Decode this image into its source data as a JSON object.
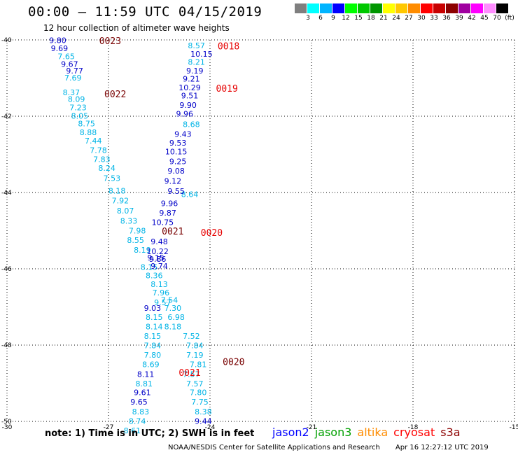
{
  "title": "00:00 – 11:59 UTC 04/15/2019",
  "subtitle": "12 hour collection of altimeter wave heights",
  "legend": {
    "unit": "(ft)",
    "bins": [
      {
        "label": "3",
        "color": "#7f7f7f"
      },
      {
        "label": "6",
        "color": "#00ffff"
      },
      {
        "label": "9",
        "color": "#00b4ff"
      },
      {
        "label": "12",
        "color": "#0000ff"
      },
      {
        "label": "15",
        "color": "#00ff00"
      },
      {
        "label": "18",
        "color": "#00c800"
      },
      {
        "label": "21",
        "color": "#009600"
      },
      {
        "label": "24",
        "color": "#ffff00"
      },
      {
        "label": "27",
        "color": "#ffc800"
      },
      {
        "label": "30",
        "color": "#ff8c00"
      },
      {
        "label": "33",
        "color": "#ff0000"
      },
      {
        "label": "36",
        "color": "#c80000"
      },
      {
        "label": "39",
        "color": "#8c0000"
      },
      {
        "label": "42",
        "color": "#a000a0"
      },
      {
        "label": "45",
        "color": "#ff00ff"
      },
      {
        "label": "70",
        "color": "#ff8cff"
      },
      {
        "label": "",
        "color": "#000000"
      }
    ]
  },
  "note": "note:  1) Time is in UTC;  2) SWH is in feet",
  "satellites": [
    {
      "name": "jason2",
      "color": "#0000ff"
    },
    {
      "name": "jason3",
      "color": "#00a000"
    },
    {
      "name": "altika",
      "color": "#ff8c00"
    },
    {
      "name": "cryosat",
      "color": "#ff0000"
    },
    {
      "name": "s3a",
      "color": "#8c0000"
    }
  ],
  "footer": {
    "source": "NOAA/NESDIS Center for Satellite Applications and Research",
    "timestamp": "Apr 16 12:27:12 UTC 2019"
  },
  "colors": {
    "light_blue": "#00b4e6",
    "dark_blue": "#0000c8",
    "time_red": "#e60000",
    "time_dark": "#780000"
  },
  "chart_data": {
    "type": "scatter",
    "xlim": [
      -30,
      -15
    ],
    "ylim": [
      -50,
      -40
    ],
    "xticks": [
      "-30",
      "-27",
      "-24",
      "-21",
      "-18",
      "-15"
    ],
    "yticks": [
      "-40",
      "-42",
      "-44",
      "-46",
      "-48",
      "-50"
    ],
    "grid": true,
    "series": [
      {
        "color": "#00b4e6",
        "points": [
          {
            "x": -28.25,
            "y": -40.43,
            "v": "7.65"
          },
          {
            "x": -28.05,
            "y": -40.99,
            "v": "7.69"
          },
          {
            "x": -28.1,
            "y": -41.38,
            "v": "8.37"
          },
          {
            "x": -27.95,
            "y": -41.55,
            "v": "8.09"
          },
          {
            "x": -27.9,
            "y": -41.77,
            "v": "7.23"
          },
          {
            "x": -27.85,
            "y": -41.99,
            "v": "8.05"
          },
          {
            "x": -27.65,
            "y": -42.19,
            "v": "8.75"
          },
          {
            "x": -27.6,
            "y": -42.42,
            "v": "8.88"
          },
          {
            "x": -27.45,
            "y": -42.64,
            "v": "7.44"
          },
          {
            "x": -27.3,
            "y": -42.89,
            "v": "7.78"
          },
          {
            "x": -27.2,
            "y": -43.13,
            "v": "7.83"
          },
          {
            "x": -27.05,
            "y": -43.36,
            "v": "8.24"
          },
          {
            "x": -26.9,
            "y": -43.62,
            "v": "7.53"
          },
          {
            "x": -26.75,
            "y": -43.95,
            "v": "8.18"
          },
          {
            "x": -26.65,
            "y": -44.21,
            "v": "7.92"
          },
          {
            "x": -26.5,
            "y": -44.48,
            "v": "8.07"
          },
          {
            "x": -26.4,
            "y": -44.74,
            "v": "8.33"
          },
          {
            "x": -26.15,
            "y": -45.0,
            "v": "7.98"
          },
          {
            "x": -26.2,
            "y": -45.25,
            "v": "8.55"
          },
          {
            "x": -26.0,
            "y": -45.5,
            "v": "8.19"
          },
          {
            "x": -25.8,
            "y": -45.95,
            "v": "8.15"
          },
          {
            "x": -25.65,
            "y": -46.17,
            "v": "8.36"
          },
          {
            "x": -25.5,
            "y": -46.4,
            "v": "8.13"
          },
          {
            "x": -25.45,
            "y": -46.62,
            "v": "7.96"
          },
          {
            "x": -25.2,
            "y": -46.82,
            "v": "7.54"
          },
          {
            "x": -25.1,
            "y": -47.03,
            "v": "7.30"
          },
          {
            "x": -25.65,
            "y": -47.27,
            "v": "8.15"
          },
          {
            "x": -25.0,
            "y": -47.27,
            "v": "6.98"
          },
          {
            "x": -25.65,
            "y": -47.51,
            "v": "8.14"
          },
          {
            "x": -25.1,
            "y": -47.51,
            "v": "8.18"
          },
          {
            "x": -25.7,
            "y": -47.76,
            "v": "8.15"
          },
          {
            "x": -24.55,
            "y": -47.76,
            "v": "7.52"
          },
          {
            "x": -25.7,
            "y": -48.01,
            "v": "7.84"
          },
          {
            "x": -24.45,
            "y": -48.01,
            "v": "7.84"
          },
          {
            "x": -25.7,
            "y": -48.26,
            "v": "7.80"
          },
          {
            "x": -24.45,
            "y": -48.26,
            "v": "7.19"
          },
          {
            "x": -25.75,
            "y": -48.5,
            "v": "8.69"
          },
          {
            "x": -24.35,
            "y": -48.5,
            "v": "7.81"
          },
          {
            "x": -24.55,
            "y": -48.76,
            "v": "7.57"
          },
          {
            "x": -25.95,
            "y": -49.01,
            "v": "8.81"
          },
          {
            "x": -24.45,
            "y": -49.01,
            "v": "7.57"
          },
          {
            "x": -24.35,
            "y": -49.24,
            "v": "7.80"
          },
          {
            "x": -24.3,
            "y": -49.49,
            "v": "7.75"
          },
          {
            "x": -26.05,
            "y": -49.74,
            "v": "8.83"
          },
          {
            "x": -24.2,
            "y": -49.74,
            "v": "8.38"
          },
          {
            "x": -26.15,
            "y": -49.99,
            "v": "8.74"
          },
          {
            "x": -26.3,
            "y": -50.24,
            "v": "8.61"
          },
          {
            "x": -24.4,
            "y": -40.15,
            "v": "8.57"
          },
          {
            "x": -24.4,
            "y": -40.58,
            "v": "8.21"
          },
          {
            "x": -24.55,
            "y": -42.21,
            "v": "8.68"
          },
          {
            "x": -24.6,
            "y": -44.05,
            "v": "8.64"
          },
          {
            "x": -25.4,
            "y": -46.88,
            "v": "9.57"
          }
        ]
      },
      {
        "color": "#0000c8",
        "points": [
          {
            "x": -28.5,
            "y": -40.01,
            "v": "9.80"
          },
          {
            "x": -28.45,
            "y": -40.22,
            "v": "9.69"
          },
          {
            "x": -28.15,
            "y": -40.63,
            "v": "9.67"
          },
          {
            "x": -28.0,
            "y": -40.81,
            "v": "9.77"
          },
          {
            "x": -24.25,
            "y": -40.37,
            "v": "10.15"
          },
          {
            "x": -24.45,
            "y": -40.81,
            "v": "9.19"
          },
          {
            "x": -24.55,
            "y": -41.02,
            "v": "9.21"
          },
          {
            "x": -24.6,
            "y": -41.25,
            "v": "10.29"
          },
          {
            "x": -24.6,
            "y": -41.46,
            "v": "9.51"
          },
          {
            "x": -24.65,
            "y": -41.71,
            "v": "9.90"
          },
          {
            "x": -24.75,
            "y": -41.94,
            "v": "9.96"
          },
          {
            "x": -24.8,
            "y": -42.47,
            "v": "9.43"
          },
          {
            "x": -24.95,
            "y": -42.7,
            "v": "9.53"
          },
          {
            "x": -25.0,
            "y": -42.93,
            "v": "10.15"
          },
          {
            "x": -24.95,
            "y": -43.18,
            "v": "9.25"
          },
          {
            "x": -25.0,
            "y": -43.43,
            "v": "9.08"
          },
          {
            "x": -25.1,
            "y": -43.7,
            "v": "9.12"
          },
          {
            "x": -25.0,
            "y": -43.96,
            "v": "9.55"
          },
          {
            "x": -25.2,
            "y": -44.28,
            "v": "9.96"
          },
          {
            "x": -25.25,
            "y": -44.53,
            "v": "9.87"
          },
          {
            "x": -25.4,
            "y": -44.78,
            "v": "10.75"
          },
          {
            "x": -25.5,
            "y": -45.28,
            "v": "9.48"
          },
          {
            "x": -25.55,
            "y": -45.54,
            "v": "10.22"
          },
          {
            "x": -25.6,
            "y": -45.71,
            "v": "9.15"
          },
          {
            "x": -25.55,
            "y": -45.74,
            "v": "9.86"
          },
          {
            "x": -25.5,
            "y": -45.93,
            "v": "9.74"
          },
          {
            "x": -25.7,
            "y": -47.03,
            "v": "9.03"
          },
          {
            "x": -26.0,
            "y": -49.24,
            "v": "9.61"
          },
          {
            "x": -26.1,
            "y": -49.49,
            "v": "9.65"
          },
          {
            "x": -24.2,
            "y": -49.99,
            "v": "9.44"
          },
          {
            "x": -25.9,
            "y": -48.76,
            "v": "8.11"
          }
        ]
      }
    ],
    "time_labels": [
      {
        "x": -26.95,
        "y": -40.02,
        "v": "0023",
        "color": "#780000"
      },
      {
        "x": -23.45,
        "y": -40.16,
        "v": "0018",
        "color": "#e60000"
      },
      {
        "x": -23.5,
        "y": -41.27,
        "v": "0019",
        "color": "#e60000"
      },
      {
        "x": -26.8,
        "y": -41.41,
        "v": "0022",
        "color": "#780000"
      },
      {
        "x": -25.1,
        "y": -45.01,
        "v": "0021",
        "color": "#780000"
      },
      {
        "x": -23.95,
        "y": -45.05,
        "v": "0020",
        "color": "#e60000"
      },
      {
        "x": -23.3,
        "y": -48.43,
        "v": "0020",
        "color": "#780000"
      },
      {
        "x": -24.6,
        "y": -48.72,
        "v": "0021",
        "color": "#e60000"
      }
    ]
  }
}
